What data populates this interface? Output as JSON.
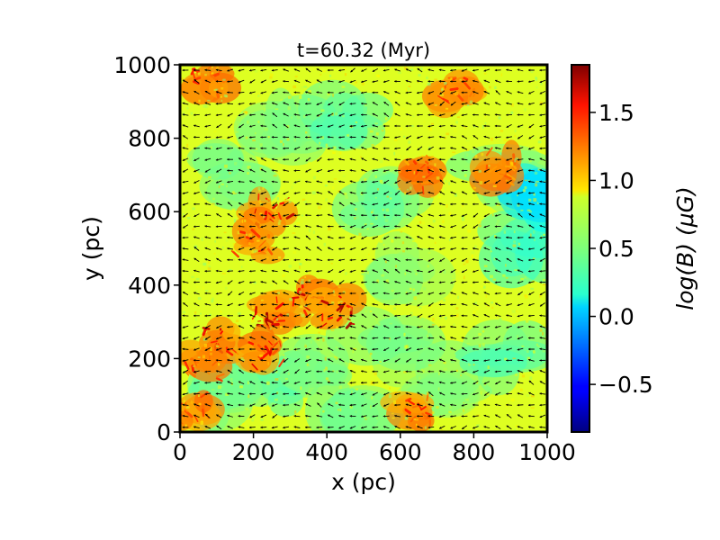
{
  "chart_data": {
    "type": "heatmap",
    "title": "t=60.32 (Myr)",
    "xlabel": "x (pc)",
    "ylabel": "y (pc)",
    "xlim": [
      0,
      1000
    ],
    "ylim": [
      0,
      1000
    ],
    "x_ticks": [
      0,
      200,
      400,
      600,
      800,
      1000
    ],
    "y_ticks": [
      0,
      200,
      400,
      600,
      800,
      1000
    ],
    "colorbar": {
      "label": "log(B) (μG)",
      "range": [
        -0.85,
        1.85
      ],
      "ticks": [
        -0.5,
        0.0,
        0.5,
        1.0,
        1.5
      ],
      "tick_labels": [
        "−0.5",
        "0.0",
        "0.5",
        "1.0",
        "1.5"
      ],
      "colormap": "jet"
    },
    "overlay": "magnetic field direction vectors (black arrows)",
    "background_level": 0.75,
    "low_regions": [
      {
        "x": 300,
        "y": 830,
        "value": 0.45
      },
      {
        "x": 470,
        "y": 860,
        "value": 0.4
      },
      {
        "x": 560,
        "y": 640,
        "value": 0.45
      },
      {
        "x": 880,
        "y": 700,
        "value": 0.45
      },
      {
        "x": 960,
        "y": 510,
        "value": 0.3
      },
      {
        "x": 930,
        "y": 640,
        "value": 0.1
      },
      {
        "x": 600,
        "y": 440,
        "value": 0.5
      },
      {
        "x": 250,
        "y": 130,
        "value": 0.4
      },
      {
        "x": 470,
        "y": 50,
        "value": 0.45
      },
      {
        "x": 700,
        "y": 140,
        "value": 0.5
      },
      {
        "x": 900,
        "y": 200,
        "value": 0.4
      },
      {
        "x": 100,
        "y": 90,
        "value": 0.45
      },
      {
        "x": 560,
        "y": 220,
        "value": 0.5
      },
      {
        "x": 150,
        "y": 700,
        "value": 0.5
      },
      {
        "x": 380,
        "y": 190,
        "value": 0.5
      }
    ],
    "high_regions": [
      {
        "x": 80,
        "y": 960,
        "value": 1.4
      },
      {
        "x": 760,
        "y": 930,
        "value": 1.4
      },
      {
        "x": 250,
        "y": 600,
        "value": 1.6
      },
      {
        "x": 200,
        "y": 510,
        "value": 1.4
      },
      {
        "x": 100,
        "y": 250,
        "value": 1.6
      },
      {
        "x": 250,
        "y": 320,
        "value": 1.7
      },
      {
        "x": 350,
        "y": 360,
        "value": 1.6
      },
      {
        "x": 430,
        "y": 330,
        "value": 1.7
      },
      {
        "x": 240,
        "y": 220,
        "value": 1.5
      },
      {
        "x": 60,
        "y": 180,
        "value": 1.4
      },
      {
        "x": 640,
        "y": 60,
        "value": 1.4
      },
      {
        "x": 870,
        "y": 720,
        "value": 1.3
      },
      {
        "x": 660,
        "y": 700,
        "value": 1.3
      },
      {
        "x": 30,
        "y": 60,
        "value": 1.3
      }
    ]
  }
}
